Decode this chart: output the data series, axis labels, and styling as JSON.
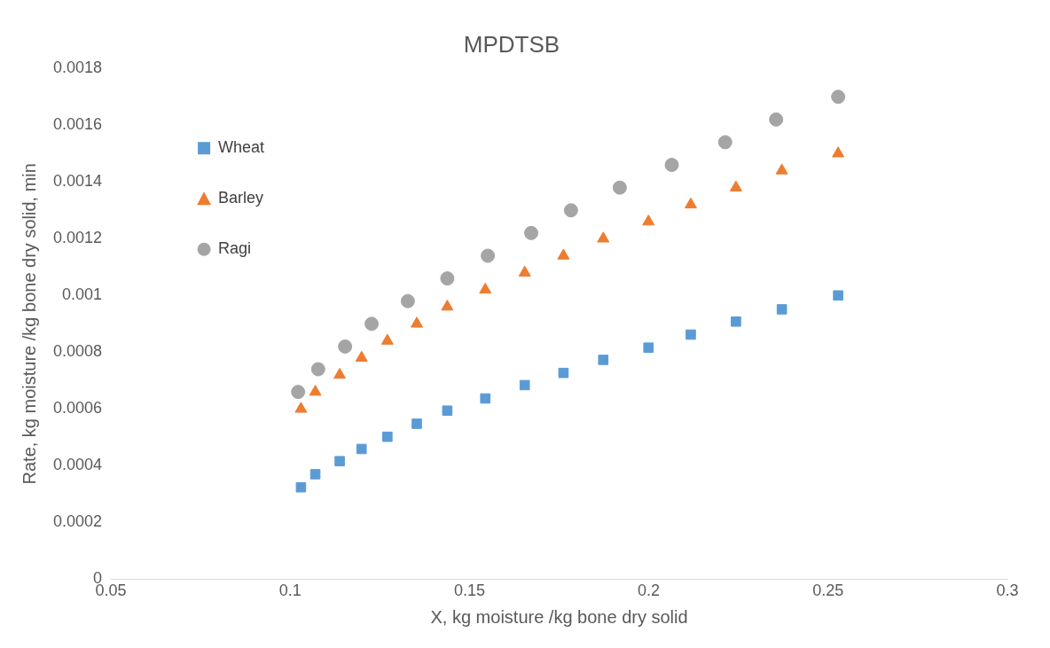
{
  "chart_data": {
    "type": "scatter",
    "title": "MPDTSB",
    "xlabel": "X, kg moisture /kg bone dry solid",
    "ylabel": "Rate, kg moisture /kg bone dry solid, min",
    "xlim": [
      0.05,
      0.3
    ],
    "xticks": [
      0.05,
      0.1,
      0.15,
      0.2,
      0.25,
      0.3
    ],
    "ylim": [
      0,
      0.0018
    ],
    "yticks": [
      0,
      0.0002,
      0.0004,
      0.0006,
      0.0008,
      0.001,
      0.0012,
      0.0014,
      0.0016,
      0.0018
    ],
    "grid": false,
    "legend": "top left",
    "series": [
      {
        "name": "Wheat",
        "color": "#5b9bd5",
        "marker": "square",
        "x": [
          0.103,
          0.107,
          0.1138,
          0.1199,
          0.1271,
          0.1353,
          0.1438,
          0.1544,
          0.1654,
          0.1762,
          0.1873,
          0.1999,
          0.2117,
          0.2243,
          0.2371,
          0.2528
        ],
        "values": [
          0.000324,
          0.00037,
          0.000416,
          0.000459,
          0.000502,
          0.000548,
          0.000594,
          0.000637,
          0.000684,
          0.000727,
          0.000773,
          0.000816,
          0.000862,
          0.000908,
          0.000951,
          0.001
        ]
      },
      {
        "name": "Barley",
        "color": "#ed7d31",
        "marker": "triangle",
        "x": [
          0.103,
          0.107,
          0.1138,
          0.1199,
          0.1271,
          0.1353,
          0.1438,
          0.1544,
          0.1654,
          0.1762,
          0.1873,
          0.1999,
          0.2117,
          0.2243,
          0.2371,
          0.2528
        ],
        "values": [
          0.0006,
          0.00066,
          0.00072,
          0.00078,
          0.00084,
          0.0009,
          0.00096,
          0.00102,
          0.00108,
          0.00114,
          0.0012,
          0.00126,
          0.00132,
          0.00138,
          0.00144,
          0.0015
        ]
      },
      {
        "name": "Ragi",
        "color": "#a5a5a5",
        "marker": "circle",
        "x": [
          0.1022,
          0.1078,
          0.1153,
          0.1227,
          0.1328,
          0.1438,
          0.1551,
          0.1672,
          0.1783,
          0.1919,
          0.2064,
          0.2213,
          0.2355,
          0.2528
        ],
        "values": [
          0.00066,
          0.00074,
          0.00082,
          0.0009,
          0.00098,
          0.00106,
          0.00114,
          0.00122,
          0.0013,
          0.00138,
          0.00146,
          0.00154,
          0.00162,
          0.0017
        ]
      }
    ]
  }
}
